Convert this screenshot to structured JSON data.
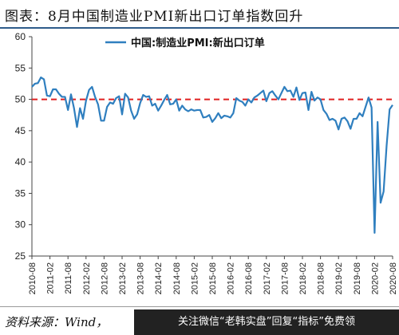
{
  "header": {
    "title": "图表：8月中国制造业PMI新出口订单指数回升"
  },
  "footer": {
    "source": "资料来源：Wind，",
    "banner": "关注微信“老韩实盘”回复“指标”免费领"
  },
  "chart_data": {
    "type": "line",
    "title": "",
    "xlabel": "",
    "ylabel": "",
    "ylim": [
      25,
      60
    ],
    "yticks": [
      25,
      30,
      35,
      40,
      45,
      50,
      55,
      60
    ],
    "xticks": [
      "2010-08",
      "2011-02",
      "2011-08",
      "2012-02",
      "2012-08",
      "2013-02",
      "2013-08",
      "2014-02",
      "2014-08",
      "2015-02",
      "2015-08",
      "2016-02",
      "2016-08",
      "2017-02",
      "2017-08",
      "2018-02",
      "2018-08",
      "2019-02",
      "2019-08",
      "2020-02",
      "2020-08"
    ],
    "reference_line": {
      "value": 50,
      "color": "#e02020",
      "style": "dashed"
    },
    "legend": {
      "position": "top-center"
    },
    "series": [
      {
        "name": "中国:制造业PMI:新出口订单",
        "color": "#2f7fbf",
        "x": [
          "2010-08",
          "2010-09",
          "2010-10",
          "2010-11",
          "2010-12",
          "2011-01",
          "2011-02",
          "2011-03",
          "2011-04",
          "2011-05",
          "2011-06",
          "2011-07",
          "2011-08",
          "2011-09",
          "2011-10",
          "2011-11",
          "2011-12",
          "2012-01",
          "2012-02",
          "2012-03",
          "2012-04",
          "2012-05",
          "2012-06",
          "2012-07",
          "2012-08",
          "2012-09",
          "2012-10",
          "2012-11",
          "2012-12",
          "2013-01",
          "2013-02",
          "2013-03",
          "2013-04",
          "2013-05",
          "2013-06",
          "2013-07",
          "2013-08",
          "2013-09",
          "2013-10",
          "2013-11",
          "2013-12",
          "2014-01",
          "2014-02",
          "2014-03",
          "2014-04",
          "2014-05",
          "2014-06",
          "2014-07",
          "2014-08",
          "2014-09",
          "2014-10",
          "2014-11",
          "2014-12",
          "2015-01",
          "2015-02",
          "2015-03",
          "2015-04",
          "2015-05",
          "2015-06",
          "2015-07",
          "2015-08",
          "2015-09",
          "2015-10",
          "2015-11",
          "2015-12",
          "2016-01",
          "2016-02",
          "2016-03",
          "2016-04",
          "2016-05",
          "2016-06",
          "2016-07",
          "2016-08",
          "2016-09",
          "2016-10",
          "2016-11",
          "2016-12",
          "2017-01",
          "2017-02",
          "2017-03",
          "2017-04",
          "2017-05",
          "2017-06",
          "2017-07",
          "2017-08",
          "2017-09",
          "2017-10",
          "2017-11",
          "2017-12",
          "2018-01",
          "2018-02",
          "2018-03",
          "2018-04",
          "2018-05",
          "2018-06",
          "2018-07",
          "2018-08",
          "2018-09",
          "2018-10",
          "2018-11",
          "2018-12",
          "2019-01",
          "2019-02",
          "2019-03",
          "2019-04",
          "2019-05",
          "2019-06",
          "2019-07",
          "2019-08",
          "2019-09",
          "2019-10",
          "2019-11",
          "2019-12",
          "2020-01",
          "2020-02",
          "2020-03",
          "2020-04",
          "2020-05",
          "2020-06",
          "2020-07",
          "2020-08"
        ],
        "values": [
          52.0,
          52.5,
          52.6,
          53.5,
          53.2,
          50.6,
          50.5,
          51.6,
          51.6,
          50.9,
          50.4,
          50.4,
          48.3,
          50.8,
          48.6,
          45.6,
          48.6,
          46.9,
          49.8,
          51.5,
          52.0,
          50.4,
          49.2,
          46.6,
          46.6,
          48.8,
          49.5,
          49.3,
          50.2,
          50.5,
          47.6,
          50.9,
          50.3,
          48.2,
          46.9,
          47.6,
          49.4,
          50.7,
          50.4,
          50.5,
          49.0,
          49.3,
          48.2,
          49.0,
          49.9,
          50.7,
          49.2,
          49.3,
          50.0,
          48.2,
          49.0,
          48.4,
          48.1,
          48.4,
          48.2,
          48.3,
          48.3,
          47.1,
          47.2,
          47.5,
          46.4,
          47.0,
          47.8,
          47.0,
          47.4,
          47.3,
          47.1,
          47.8,
          50.2,
          49.8,
          49.6,
          49.0,
          50.0,
          49.5,
          50.3,
          50.6,
          51.0,
          51.4,
          49.7,
          51.0,
          51.3,
          50.6,
          50.0,
          51.0,
          52.0,
          51.3,
          51.4,
          50.4,
          51.9,
          49.9,
          51.0,
          51.1,
          48.3,
          51.2,
          49.8,
          50.3,
          50.0,
          48.3,
          47.7,
          46.7,
          46.9,
          46.6,
          45.2,
          46.9,
          47.1,
          46.5,
          45.3,
          46.9,
          46.9,
          47.8,
          47.3,
          48.8,
          50.3,
          48.7,
          28.7,
          46.4,
          33.5,
          35.3,
          42.6,
          48.4,
          49.1
        ]
      }
    ]
  }
}
